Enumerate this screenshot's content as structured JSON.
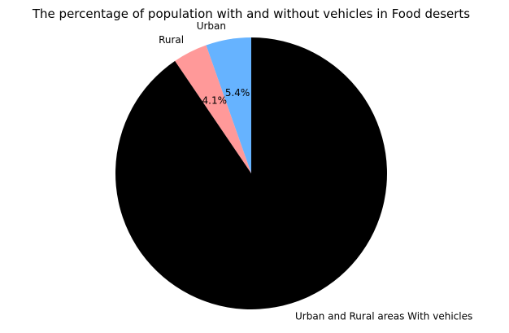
{
  "chart_data": {
    "type": "pie",
    "title": "The percentage of population with and without vehicles in Food deserts",
    "slices": [
      {
        "label": "Urban",
        "value": 5.4,
        "percent_label": "5.4%",
        "color": "#66b3ff"
      },
      {
        "label": "Rural",
        "value": 4.1,
        "percent_label": "4.1%",
        "color": "#ff9999"
      },
      {
        "label": "Urban and Rural areas With vehicles",
        "value": 90.5,
        "percent_label": "",
        "color": "#000000"
      }
    ],
    "start_angle_deg": 90,
    "direction": "counterclockwise"
  }
}
